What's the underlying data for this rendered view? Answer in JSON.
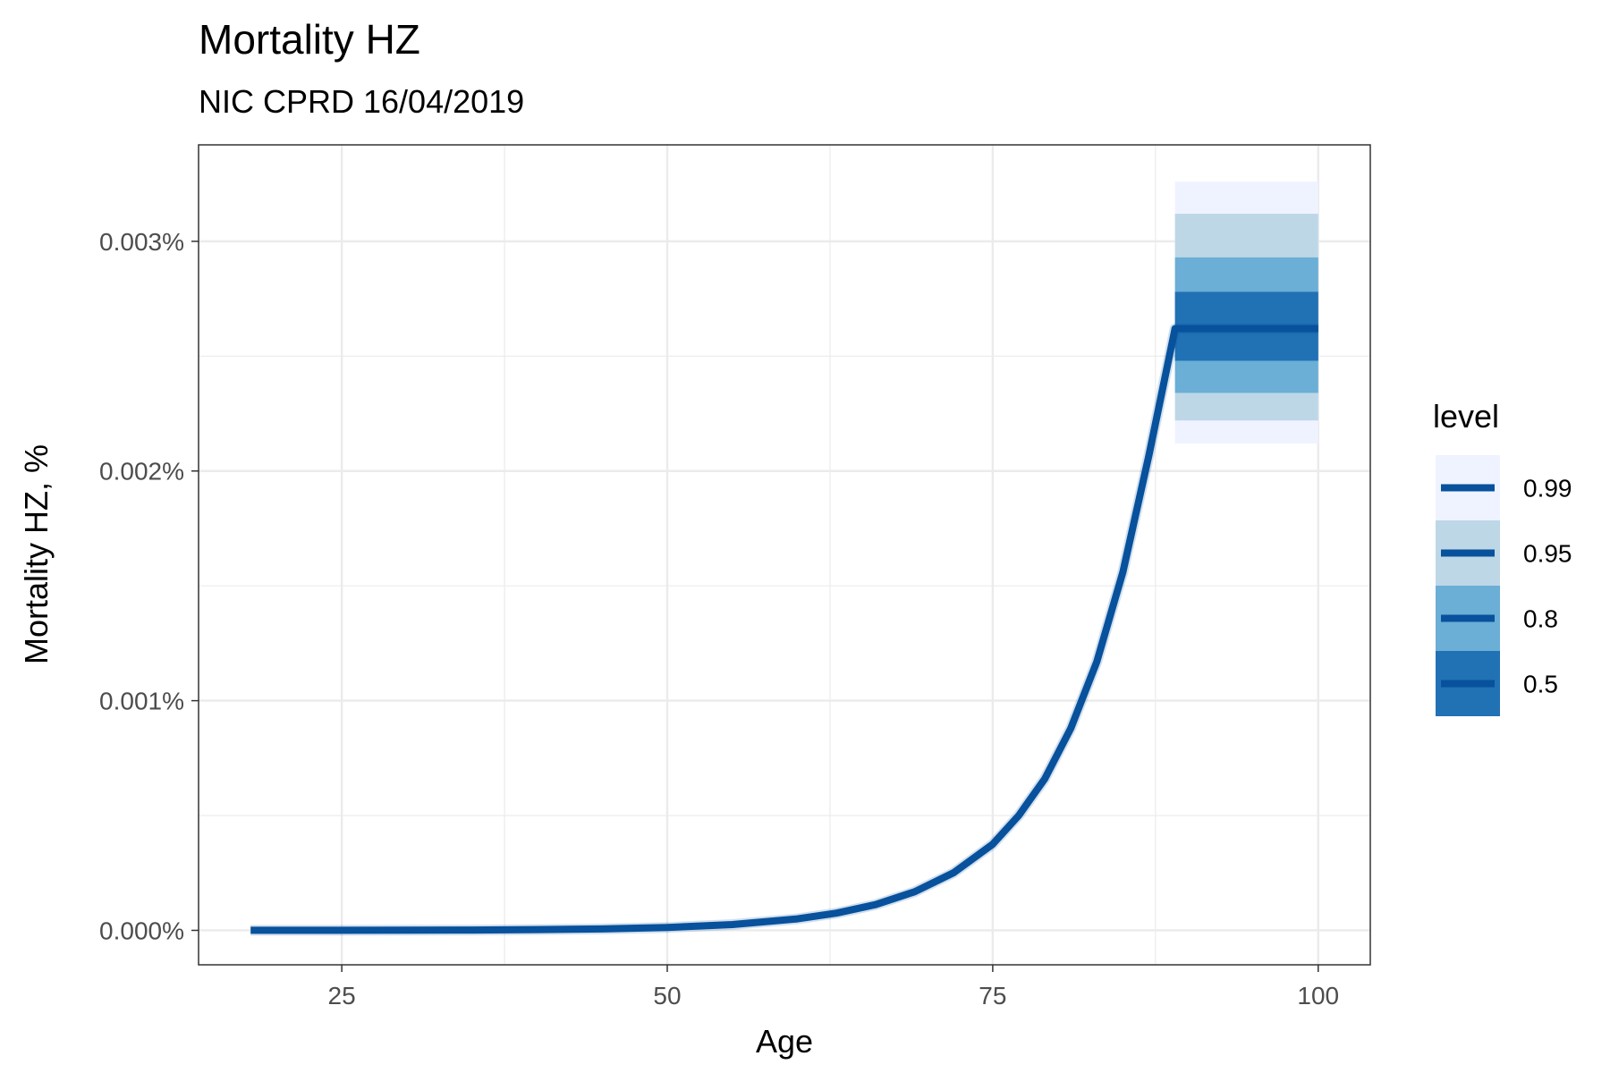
{
  "chart_data": {
    "type": "line",
    "title": "Mortality HZ",
    "subtitle": "NIC CPRD 16/04/2019",
    "xlabel": "Age",
    "ylabel": "Mortality HZ, %",
    "xlim": [
      14,
      104
    ],
    "ylim": [
      -0.00015,
      0.00342
    ],
    "x_ticks": [
      25,
      50,
      75,
      100
    ],
    "x_tick_labels": [
      "25",
      "50",
      "75",
      "100"
    ],
    "y_ticks": [
      0,
      0.001,
      0.002,
      0.003
    ],
    "y_tick_labels": [
      "0.000%",
      "0.001%",
      "0.002%",
      "0.003%"
    ],
    "grid": true,
    "legend": {
      "title": "level",
      "placement": "right",
      "entries": [
        {
          "label": "0.99",
          "color": "#eff3ff"
        },
        {
          "label": "0.95",
          "color": "#bdd7e7"
        },
        {
          "label": "0.8",
          "color": "#6baed6"
        },
        {
          "label": "0.5",
          "color": "#2171b5"
        }
      ]
    },
    "line_color": "#08519c",
    "x": [
      18,
      25,
      30,
      35,
      40,
      45,
      50,
      55,
      60,
      63,
      66,
      69,
      72,
      75,
      77,
      79,
      81,
      83,
      85,
      87,
      89,
      89,
      95,
      100
    ],
    "median": [
      2e-07,
      4e-07,
      8e-07,
      1.6e-06,
      3.2e-06,
      6.3e-06,
      1.26e-05,
      2.51e-05,
      5e-05,
      7.5e-05,
      0.000112,
      0.000168,
      0.000251,
      0.000375,
      0.0005,
      0.00066,
      0.00088,
      0.00117,
      0.00156,
      0.00207,
      0.00262,
      0.00262,
      0.00262,
      0.00262
    ],
    "bands_after_89": [
      {
        "level": "0.99",
        "lower": 0.00212,
        "upper": 0.00326
      },
      {
        "level": "0.95",
        "lower": 0.00222,
        "upper": 0.00312
      },
      {
        "level": "0.8",
        "lower": 0.00234,
        "upper": 0.00293
      },
      {
        "level": "0.5",
        "lower": 0.00248,
        "upper": 0.00278
      }
    ]
  }
}
